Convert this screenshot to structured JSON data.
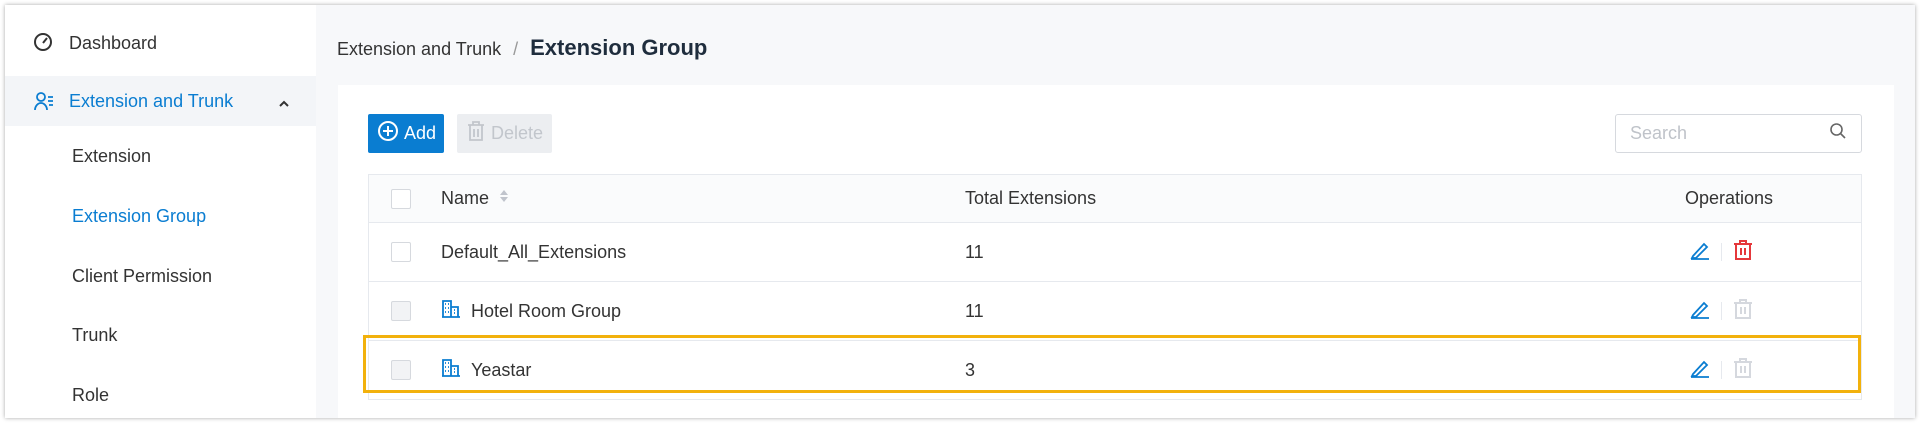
{
  "sidebar": {
    "items": [
      {
        "label": "Dashboard",
        "icon": "dashboard-gauge-icon"
      },
      {
        "label": "Extension and Trunk",
        "icon": "users-list-icon",
        "expanded": true,
        "children": [
          {
            "label": "Extension"
          },
          {
            "label": "Extension Group",
            "active": true
          },
          {
            "label": "Client Permission"
          },
          {
            "label": "Trunk"
          },
          {
            "label": "Role"
          }
        ]
      }
    ]
  },
  "breadcrumb": {
    "parent": "Extension and Trunk",
    "separator": "/",
    "current": "Extension Group"
  },
  "toolbar": {
    "add_label": "Add",
    "delete_label": "Delete",
    "search_placeholder": "Search"
  },
  "table": {
    "columns": [
      "Name",
      "Total Extensions",
      "Operations"
    ],
    "rows": [
      {
        "name": "Default_All_Extensions",
        "total": "11",
        "deletable": true,
        "org_icon": false
      },
      {
        "name": "Hotel Room Group",
        "total": "11",
        "deletable": false,
        "org_icon": true
      },
      {
        "name": "Yeastar",
        "total": "3",
        "deletable": false,
        "org_icon": true,
        "highlighted": true
      }
    ]
  },
  "colors": {
    "accent": "#0a7dd1",
    "danger": "#e5383b",
    "highlight": "#f2b10c",
    "disabled": "#d5d8de"
  }
}
